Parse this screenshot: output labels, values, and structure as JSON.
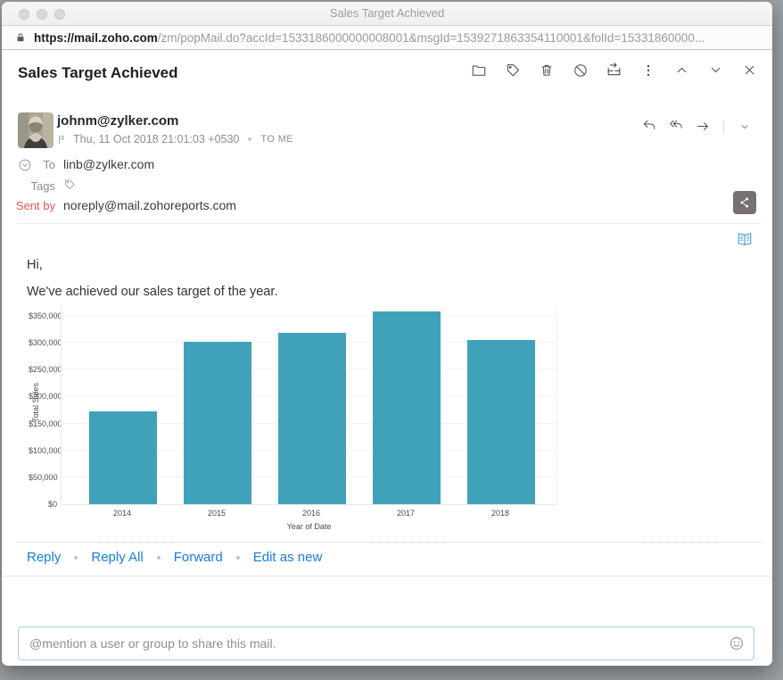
{
  "window": {
    "title": "Sales Target Achieved"
  },
  "browser": {
    "url_host": "https://mail.zoho.com",
    "url_path": "/zm/popMail.do?accId=1533186000000008001&msgId=1539271863354110001&folId=15331860000..."
  },
  "toolbar_icons": [
    "move-to-folder",
    "tags",
    "delete",
    "mark-spam",
    "archive",
    "more-options",
    "previous-mail",
    "next-mail",
    "close"
  ],
  "mail": {
    "subject": "Sales Target Achieved",
    "from_email": "johnm@zylker.com",
    "date": "Thu, 11 Oct 2018 21:01:03 +0530",
    "to_me": "TO ME",
    "to_label": "To",
    "to_value": "linb@zylker.com",
    "tags_label": "Tags",
    "sent_by_label": "Sent by",
    "sent_by_value": "noreply@mail.zohoreports.com",
    "greeting": "Hi,",
    "message": "We've achieved our sales target of the year.",
    "actions": [
      "Reply",
      "Reply All",
      "Forward",
      "Edit as new"
    ]
  },
  "mention": {
    "placeholder": "@mention a user or group to share this mail."
  },
  "colors": {
    "bar_teal": "#3fa2ba",
    "link_blue": "#1a7de0",
    "sent_by_red": "#e8544b",
    "book_blue": "#4a9fd8",
    "desktop_gray": "#9ba0a4"
  },
  "chart_data": {
    "type": "bar",
    "title": "",
    "categories": [
      "2014",
      "2015",
      "2016",
      "2017",
      "2018"
    ],
    "values": [
      172000,
      302000,
      318000,
      358000,
      305000
    ],
    "xlabel": "Year of Date",
    "ylabel": "Total Sales",
    "ylim": [
      0,
      371500
    ],
    "yticks": [
      0,
      50000,
      100000,
      150000,
      200000,
      250000,
      300000,
      350000
    ],
    "ytick_labels": [
      "$0",
      "$50,000",
      "$100,000",
      "$150,000",
      "$200,000",
      "$250,000",
      "$300,000",
      "$350,000"
    ],
    "bar_color": "#3fa2ba",
    "grid": true,
    "legend": false
  }
}
